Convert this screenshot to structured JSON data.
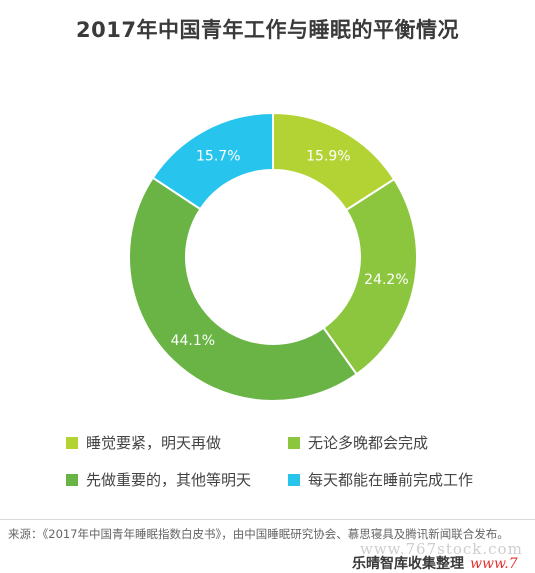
{
  "chart_data": {
    "type": "pie",
    "title": "2017年中国青年工作与睡眠的平衡情况",
    "categories": [
      "睡觉要紧，明天再做",
      "无论多晚都会完成",
      "先做重要的，其他等明天",
      "每天都能在睡前完成工作"
    ],
    "values": [
      15.9,
      24.2,
      44.1,
      15.7
    ],
    "value_labels": [
      "15.9%",
      "24.2%",
      "44.1%",
      "15.7%"
    ],
    "colors": [
      "#b3d335",
      "#8cc63f",
      "#6ab446",
      "#27c4ee"
    ],
    "legend_position": "bottom",
    "donut": true
  },
  "legend": {
    "items": [
      {
        "label": "睡觉要紧，明天再做",
        "color": "#b3d335"
      },
      {
        "label": "无论多晚都会完成",
        "color": "#8cc63f"
      },
      {
        "label": "先做重要的，其他等明天",
        "color": "#6ab446"
      },
      {
        "label": "每天都能在睡前完成工作",
        "color": "#27c4ee"
      }
    ]
  },
  "source": {
    "text": "来源：《2017年中国青年睡眠指数白皮书》，由中国睡眠研究协会、慕思寝具及腾讯新闻联合发布。"
  },
  "watermark": {
    "url": "www.767stock.com",
    "name": "乐晴智库收集整理",
    "url_short": "www.7"
  }
}
